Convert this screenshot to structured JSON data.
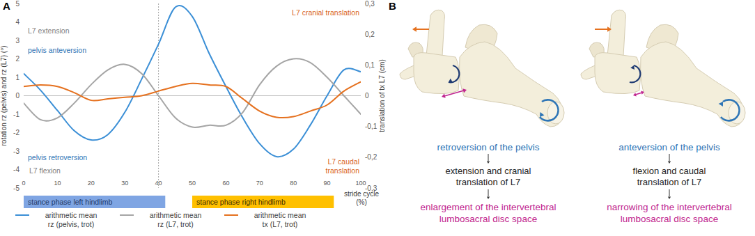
{
  "chart_data": {
    "type": "line",
    "panel_label": "A",
    "x_label": "stride cycle (%)",
    "y_label": "rotation rz (pelvis) and rz (L7) (°)",
    "y2_label": "translation of tx L7 (cm)",
    "x": [
      0,
      5,
      10,
      15,
      20,
      25,
      30,
      35,
      40,
      45,
      50,
      55,
      60,
      65,
      70,
      75,
      80,
      85,
      90,
      95,
      100
    ],
    "series": [
      {
        "name": "arithmetic mean rz (pelvis, trot)",
        "color": "#3b8fd6",
        "values": [
          1.2,
          0.3,
          -0.8,
          -1.9,
          -2.4,
          -2.1,
          -0.9,
          0.9,
          2.8,
          4.8,
          4.3,
          2.3,
          0.5,
          -1.2,
          -2.6,
          -3.3,
          -2.9,
          -1.6,
          0.0,
          1.4,
          1.3
        ]
      },
      {
        "name": "arithmetic mean rz (L7, trot)",
        "color": "#a5a5a5",
        "values": [
          -0.4,
          -1.3,
          -1.2,
          -0.4,
          0.6,
          1.4,
          1.7,
          1.2,
          0.0,
          -1.2,
          -1.7,
          -1.6,
          -1.6,
          -0.9,
          0.6,
          1.6,
          2.0,
          1.8,
          1.0,
          0.0,
          -1.0
        ]
      },
      {
        "name": "arithmetic mean tx (L7, trot)",
        "color": "#e5711f",
        "axis": "y2",
        "values": [
          0.03,
          0.035,
          0.03,
          0.01,
          -0.015,
          -0.01,
          -0.005,
          0.0,
          0.015,
          0.03,
          0.04,
          0.035,
          0.03,
          -0.01,
          -0.05,
          -0.07,
          -0.068,
          -0.05,
          -0.03,
          0.015,
          0.045
        ]
      }
    ],
    "xlim": [
      0,
      100
    ],
    "xticks": [
      0,
      10,
      20,
      30,
      40,
      50,
      60,
      70,
      80,
      90,
      100
    ],
    "ylim": [
      -5,
      5
    ],
    "yticks": [
      -5,
      -4,
      -3,
      -2,
      -1,
      0,
      1,
      2,
      3,
      4,
      5
    ],
    "y2lim": [
      -0.3,
      0.3
    ],
    "y2ticks": [
      {
        "value": -0.3,
        "label": "-0,3"
      },
      {
        "value": -0.2,
        "label": "-0,2"
      },
      {
        "value": -0.1,
        "label": "-0,1"
      },
      0,
      {
        "value": 0.1,
        "label": "0,1"
      },
      {
        "value": 0.2,
        "label": "0,2"
      },
      {
        "value": 0.3,
        "label": "0,3"
      }
    ],
    "grid": false,
    "legend": "bottom",
    "reference_line_x": 40,
    "phases": [
      {
        "label": "stance phase left hindlimb",
        "start": 0,
        "end": 42,
        "color": "#7fa5e3"
      },
      {
        "label": "stance phase right hindlimb",
        "start": 50,
        "end": 92,
        "color": "#ffc000"
      }
    ],
    "annotations": [
      {
        "text": "L7 extension",
        "color": "#7f7f7f"
      },
      {
        "text": "pelvis anteversion",
        "color": "#2e75b6"
      },
      {
        "text": "pelvis retroversion",
        "color": "#2e75b6"
      },
      {
        "text": "L7 flexion",
        "color": "#7f7f7f"
      },
      {
        "text": "L7 cranial translation",
        "color": "#d9661f"
      },
      {
        "text": "L7 caudal translation",
        "color": "#d9661f"
      }
    ]
  },
  "diagram": {
    "panel_label": "B",
    "columns": [
      {
        "pelvis": "retroversion of the pelvis",
        "l7": [
          "extension and cranial",
          "translation of L7"
        ],
        "disc": [
          "enlargement of the intervertebral",
          "lumbosacral disc space"
        ]
      },
      {
        "pelvis": "anteversion of the pelvis",
        "l7": [
          "flexion and caudal",
          "translation of L7"
        ],
        "disc": [
          "narrowing of the intervertebral",
          "lumbosacral disc space"
        ]
      }
    ]
  }
}
